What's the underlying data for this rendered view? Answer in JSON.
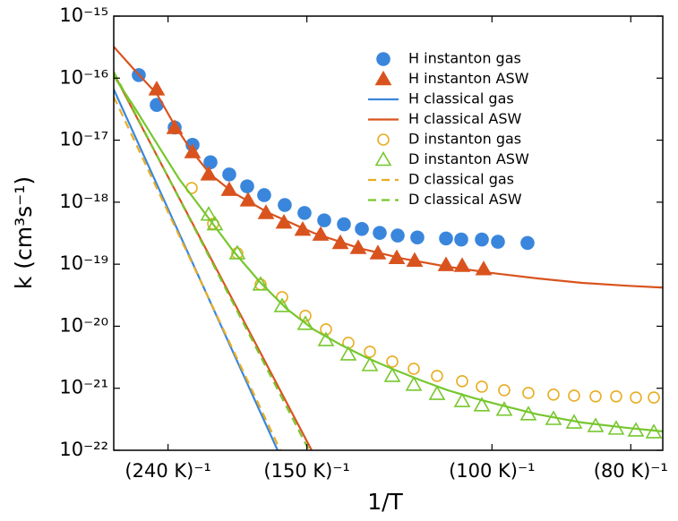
{
  "chart_data": {
    "type": "scatter",
    "xlabel": "1/T",
    "ylabel": "k (cm³s⁻¹)",
    "xlim": [
      0.003189,
      0.013076
    ],
    "ylim": [
      1e-22,
      1e-15
    ],
    "ylog": true,
    "legend": "upper right",
    "xticks": [
      {
        "value": 0.0041667,
        "label": "(240 K)⁻¹"
      },
      {
        "value": 0.0066667,
        "label": "(150 K)⁻¹"
      },
      {
        "value": 0.01,
        "label": "(100 K)⁻¹"
      },
      {
        "value": 0.0125,
        "label": "(80 K)⁻¹"
      }
    ],
    "yticks": [
      {
        "value": 1e-22,
        "label": "10⁻²²"
      },
      {
        "value": 1e-21,
        "label": "10⁻²¹"
      },
      {
        "value": 1e-20,
        "label": "10⁻²⁰"
      },
      {
        "value": 1e-19,
        "label": "10⁻¹⁹"
      },
      {
        "value": 1e-18,
        "label": "10⁻¹⁸"
      },
      {
        "value": 1e-17,
        "label": "10⁻¹⁷"
      },
      {
        "value": 1e-16,
        "label": "10⁻¹⁶"
      },
      {
        "value": 1e-15,
        "label": "10⁻¹⁵"
      }
    ],
    "series": [
      {
        "name": "H instanton gas",
        "color": "#3a86dc",
        "marker": "circle",
        "filled": true,
        "x": [
          0.00364,
          0.003963,
          0.004286,
          0.004608,
          0.004931,
          0.005269,
          0.005592,
          0.005898,
          0.006269,
          0.006624,
          0.006979,
          0.007334,
          0.007657,
          0.007979,
          0.008302,
          0.008656,
          0.009173,
          0.009447,
          0.009818,
          0.010108,
          0.01064
        ],
        "values": [
          1.12e-16,
          3.7e-17,
          1.6e-17,
          8.4e-18,
          4.4e-18,
          2.8e-18,
          1.8e-18,
          1.3e-18,
          9e-19,
          6.7e-19,
          5.1e-19,
          4.4e-19,
          3.7e-19,
          3.2e-19,
          2.9e-19,
          2.7e-19,
          2.6e-19,
          2.5e-19,
          2.5e-19,
          2.3e-19,
          2.2e-19
        ]
      },
      {
        "name": "H instanton ASW",
        "color": "#d9531e",
        "marker": "triangle",
        "filled": true,
        "x": [
          0.003963,
          0.004286,
          0.004608,
          0.004898,
          0.005269,
          0.005608,
          0.005931,
          0.006254,
          0.006592,
          0.006915,
          0.00727,
          0.007592,
          0.007947,
          0.008286,
          0.008608,
          0.009173,
          0.009463,
          0.00985
        ],
        "values": [
          6.6e-17,
          1.57e-17,
          6.4e-18,
          2.8e-18,
          1.58e-18,
          1.07e-18,
          6.7e-19,
          4.7e-19,
          3.6e-19,
          3e-19,
          2.2e-19,
          1.83e-19,
          1.5e-19,
          1.26e-19,
          1.14e-19,
          9.7e-20,
          9.4e-20,
          8.3e-20
        ]
      },
      {
        "name": "H classical gas",
        "color": "#3a86dc",
        "line": "solid",
        "x": [
          0.003189,
          0.00614
        ],
        "values": [
          6.6e-17,
          1e-22
        ]
      },
      {
        "name": "H classical ASW",
        "color": "#d9531e",
        "line": "solid",
        "x": [
          0.003189,
          0.006753
        ],
        "values": [
          1.19e-16,
          1e-22
        ]
      },
      {
        "name": "D instanton gas",
        "color": "#e8ad22",
        "marker": "circle",
        "filled": false,
        "x": [
          0.004592,
          0.004979,
          0.005414,
          0.005834,
          0.006221,
          0.00664,
          0.007011,
          0.007414,
          0.007802,
          0.008205,
          0.008592,
          0.009011,
          0.009463,
          0.009818,
          0.010221,
          0.010656,
          0.011108,
          0.011479,
          0.011866,
          0.012237,
          0.012592,
          0.012915
        ],
        "values": [
          1.69e-18,
          4.5e-19,
          1.5e-19,
          4.7e-20,
          2.94e-20,
          1.47e-20,
          8.9e-21,
          5.4e-21,
          3.88e-21,
          2.69e-21,
          2.06e-21,
          1.58e-21,
          1.3e-21,
          1.06e-21,
          9.3e-22,
          8.4e-22,
          7.9e-22,
          7.6e-22,
          7.4e-22,
          7.4e-22,
          7.1e-22,
          7.1e-22
        ]
      },
      {
        "name": "D instanton ASW",
        "color": "#77c72e",
        "marker": "triangle",
        "filled": false,
        "x": [
          0.004898,
          0.005011,
          0.005414,
          0.005834,
          0.006221,
          0.00664,
          0.007011,
          0.007414,
          0.007802,
          0.008205,
          0.008592,
          0.009011,
          0.009463,
          0.009818,
          0.010221,
          0.010656,
          0.011108,
          0.011479,
          0.011866,
          0.012237,
          0.012592,
          0.012915
        ],
        "values": [
          6.3e-19,
          4.4e-19,
          1.5e-19,
          4.7e-20,
          2.11e-20,
          1.09e-20,
          5.97e-21,
          3.51e-21,
          2.36e-21,
          1.58e-21,
          1.14e-21,
          8.1e-22,
          6.2e-22,
          5.3e-22,
          4.5e-22,
          3.8e-22,
          3.2e-22,
          2.8e-22,
          2.46e-22,
          2.23e-22,
          2.08e-22,
          1.95e-22
        ]
      },
      {
        "name": "D classical gas",
        "color": "#e8ad22",
        "line": "dashed",
        "x": [
          0.003189,
          0.006189
        ],
        "values": [
          5e-17,
          1e-22
        ]
      },
      {
        "name": "D classical ASW",
        "color": "#77c72e",
        "line": "dashed",
        "x": [
          0.003189,
          0.006705
        ],
        "values": [
          1.27e-16,
          1e-22
        ]
      },
      {
        "color": "#d9531e",
        "line": "solid",
        "x": [
          0.003189,
          0.00356,
          0.003963,
          0.004286,
          0.004608,
          0.004931,
          0.005334,
          0.005979,
          0.006786,
          0.007592,
          0.008398,
          0.009205,
          0.010011,
          0.010818,
          0.011624,
          0.012431,
          0.013076
        ],
        "values": [
          3.2e-16,
          1.36e-16,
          5.6e-17,
          1.74e-17,
          6.4e-18,
          2.8e-18,
          1.44e-18,
          6.7e-19,
          3.2e-19,
          1.83e-19,
          1.23e-19,
          9.1e-20,
          7.2e-20,
          5.9e-20,
          5e-20,
          4.5e-20,
          4.2e-20
        ]
      },
      {
        "color": "#77c72e",
        "line": "solid",
        "x": [
          0.003189,
          0.00356,
          0.003963,
          0.004366,
          0.00485,
          0.005334,
          0.005818,
          0.006302,
          0.006786,
          0.00727,
          0.007753,
          0.008237,
          0.008721,
          0.009205,
          0.009689,
          0.010173,
          0.010818,
          0.011624,
          0.012431,
          0.013076
        ],
        "values": [
          1.08e-16,
          3.4e-17,
          8.9e-18,
          2.37e-18,
          6.3e-19,
          1.66e-19,
          5.2e-20,
          1.91e-20,
          8.9e-21,
          5.06e-21,
          3.08e-21,
          2e-21,
          1.34e-21,
          9.3e-22,
          6.9e-22,
          5.3e-22,
          3.8e-22,
          2.8e-22,
          2.3e-22,
          2.02e-22
        ]
      }
    ]
  }
}
